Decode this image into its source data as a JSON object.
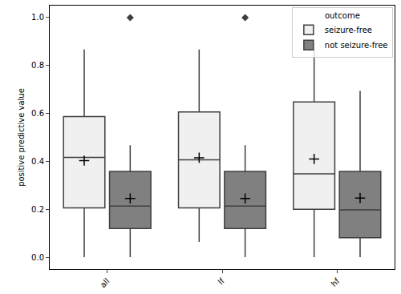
{
  "chart_data": {
    "type": "box",
    "y_label": "positive predictive value",
    "legend_title": "outcome",
    "legend": "upper right",
    "categories": [
      "all",
      "lf",
      "hf"
    ],
    "ylim": [
      -0.05,
      1.05
    ],
    "yticks": [
      {
        "value": 0,
        "label": "0.0"
      },
      {
        "value": 0.2,
        "label": "0.2"
      },
      {
        "value": 0.4,
        "label": "0.4"
      },
      {
        "value": 0.6,
        "label": "0.6"
      },
      {
        "value": 0.8,
        "label": "0.8"
      },
      {
        "value": 1,
        "label": "1.0"
      }
    ],
    "grid": false,
    "series": [
      {
        "name": "seizure-free",
        "color": "#f0f0f0",
        "whisker_low": [
          0,
          0.064,
          0
        ],
        "q1": [
          0.206,
          0.206,
          0.2
        ],
        "median": [
          0.416,
          0.406,
          0.348
        ],
        "q3": [
          0.587,
          0.606,
          0.648
        ],
        "whisker_high": [
          0.867,
          0.867,
          0.867
        ],
        "mean": [
          0.403,
          0.415,
          0.41
        ],
        "outliers": [
          [],
          [],
          []
        ]
      },
      {
        "name": "not seizure-free",
        "color": "#808080",
        "whisker_low": [
          0,
          0,
          0
        ],
        "q1": [
          0.12,
          0.12,
          0.081
        ],
        "median": [
          0.213,
          0.213,
          0.197
        ],
        "q3": [
          0.358,
          0.358,
          0.358
        ],
        "whisker_high": [
          0.467,
          0.467,
          0.694
        ],
        "mean": [
          0.245,
          0.245,
          0.247
        ],
        "outliers": [
          [
            1.0
          ],
          [
            1.0
          ],
          []
        ]
      }
    ]
  }
}
